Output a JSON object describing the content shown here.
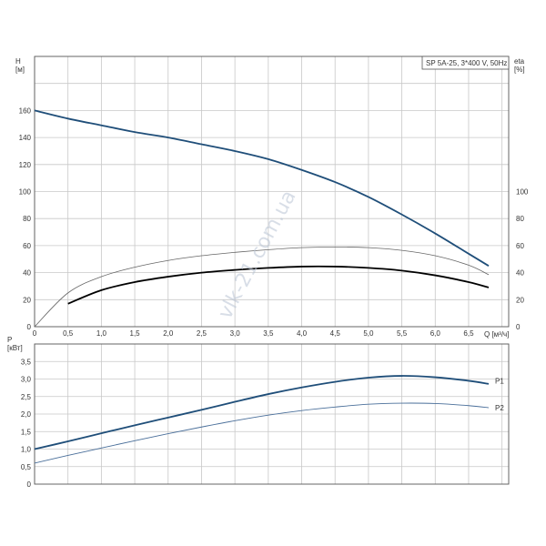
{
  "chart_data": [
    {
      "type": "line",
      "title_box": "SP 5A-25, 3*400 V, 50Hz",
      "xlabel": "Q [м³/ч]",
      "ylabel_left": [
        "H",
        "[м]"
      ],
      "ylabel_right": [
        "eta",
        "[%]"
      ],
      "xlim": [
        0,
        7.1
      ],
      "ylim": [
        0,
        200
      ],
      "x_ticks": [
        "0",
        "0,5",
        "1,0",
        "1,5",
        "2,0",
        "2,5",
        "3,0",
        "3,5",
        "4,0",
        "4,5",
        "5,0",
        "5,5",
        "6,0",
        "6,5"
      ],
      "y_left_ticks": [
        "0",
        "20",
        "40",
        "60",
        "80",
        "100",
        "120",
        "140",
        "160"
      ],
      "y_right_ticks": [
        "0",
        "20",
        "40",
        "60",
        "80",
        "100"
      ],
      "grid": true,
      "series": [
        {
          "id": "H",
          "color": "#1f4e79",
          "x": [
            0,
            0.5,
            1.0,
            1.5,
            2.0,
            2.5,
            3.0,
            3.5,
            4.0,
            4.5,
            5.0,
            5.5,
            6.0,
            6.5,
            6.8
          ],
          "y": [
            160,
            154,
            149,
            144,
            140,
            135,
            130,
            124,
            116,
            107,
            96,
            83,
            69,
            54,
            45
          ]
        },
        {
          "id": "eta_pump",
          "color": "#666666",
          "x": [
            0,
            0.5,
            1.0,
            1.5,
            2.0,
            2.5,
            3.0,
            3.5,
            4.0,
            4.5,
            5.0,
            5.5,
            6.0,
            6.5,
            6.8
          ],
          "y": [
            0,
            25,
            37,
            44,
            49,
            52.5,
            55,
            57,
            58.5,
            59,
            58.5,
            56.5,
            52.5,
            45.5,
            38.5
          ]
        },
        {
          "id": "eta_total",
          "color": "#000000",
          "x": [
            0.5,
            1.0,
            1.5,
            2.0,
            2.5,
            3.0,
            3.5,
            4.0,
            4.5,
            5.0,
            5.5,
            6.0,
            6.5,
            6.8
          ],
          "y": [
            17,
            27,
            33,
            37,
            40,
            42,
            43.5,
            44.5,
            44.5,
            43.5,
            41.5,
            38,
            33,
            29
          ]
        }
      ]
    },
    {
      "type": "line",
      "xlabel": "",
      "ylabel_left": [
        "P",
        "[кВт]"
      ],
      "xlim": [
        0,
        7.1
      ],
      "ylim": [
        0,
        4
      ],
      "y_left_ticks": [
        "0",
        "0,5",
        "1,0",
        "1,5",
        "2,0",
        "2,5",
        "3,0",
        "3,5"
      ],
      "grid": true,
      "series": [
        {
          "name": "P1",
          "color": "#1f4e79",
          "x": [
            0,
            0.5,
            1.0,
            1.5,
            2.0,
            2.5,
            3.0,
            3.5,
            4.0,
            4.5,
            5.0,
            5.5,
            6.0,
            6.5,
            6.8
          ],
          "y": [
            1.0,
            1.22,
            1.45,
            1.68,
            1.9,
            2.12,
            2.35,
            2.57,
            2.76,
            2.92,
            3.04,
            3.09,
            3.05,
            2.95,
            2.86
          ]
        },
        {
          "name": "P2",
          "color": "#4a6f9a",
          "x": [
            0,
            0.5,
            1.0,
            1.5,
            2.0,
            2.5,
            3.0,
            3.5,
            4.0,
            4.5,
            5.0,
            5.5,
            6.0,
            6.5,
            6.8
          ],
          "y": [
            0.6,
            0.82,
            1.03,
            1.24,
            1.44,
            1.63,
            1.81,
            1.97,
            2.1,
            2.2,
            2.28,
            2.31,
            2.3,
            2.24,
            2.18
          ]
        }
      ]
    }
  ],
  "watermark": "vlk-21.com.ua"
}
